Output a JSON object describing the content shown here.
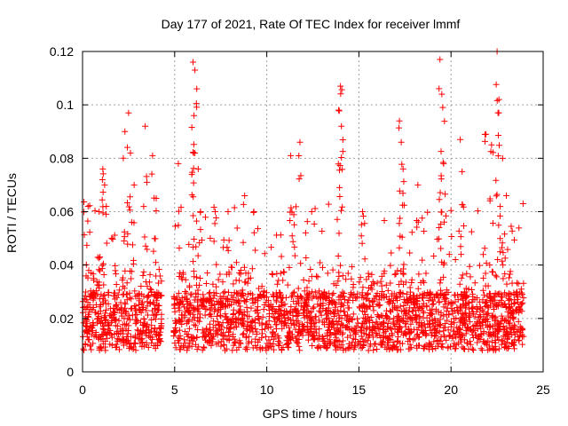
{
  "chart_data": {
    "type": "scatter",
    "title": "Day 177 of 2021, Rate Of TEC Index for receiver lmmf",
    "xlabel": "GPS time / hours",
    "ylabel": "ROTI / TECUs",
    "xlim": [
      0,
      25
    ],
    "ylim": [
      0,
      0.12
    ],
    "x_ticks": [
      0,
      5,
      10,
      15,
      20,
      25
    ],
    "x_tick_labels": [
      "0",
      "5",
      "10",
      "15",
      "20",
      "25"
    ],
    "y_ticks": [
      0,
      0.02,
      0.04,
      0.06,
      0.08,
      0.1,
      0.12
    ],
    "y_tick_labels": [
      "0",
      "0.02",
      "0.04",
      "0.06",
      "0.08",
      "0.1",
      "0.12"
    ],
    "grid": true,
    "marker": "+",
    "marker_color": "#ff0000",
    "series": [
      {
        "name": "ROTI",
        "data_gap_hours": [
          4.3,
          4.95
        ],
        "x_range_hours": [
          0,
          23.95
        ],
        "typical_band": [
          0.008,
          0.03
        ],
        "peaks": [
          {
            "x": 0.3,
            "y": 0.062
          },
          {
            "x": 0.9,
            "y": 0.06
          },
          {
            "x": 1.1,
            "y": 0.076
          },
          {
            "x": 1.2,
            "y": 0.07
          },
          {
            "x": 2.3,
            "y": 0.09
          },
          {
            "x": 2.5,
            "y": 0.097
          },
          {
            "x": 2.6,
            "y": 0.082
          },
          {
            "x": 2.8,
            "y": 0.07
          },
          {
            "x": 3.4,
            "y": 0.092
          },
          {
            "x": 3.8,
            "y": 0.081
          },
          {
            "x": 4.0,
            "y": 0.065
          },
          {
            "x": 5.2,
            "y": 0.078
          },
          {
            "x": 6.0,
            "y": 0.116
          },
          {
            "x": 6.1,
            "y": 0.113
          },
          {
            "x": 6.2,
            "y": 0.106
          },
          {
            "x": 6.05,
            "y": 0.096
          },
          {
            "x": 6.1,
            "y": 0.082
          },
          {
            "x": 6.4,
            "y": 0.06
          },
          {
            "x": 7.2,
            "y": 0.06
          },
          {
            "x": 7.9,
            "y": 0.06
          },
          {
            "x": 8.8,
            "y": 0.066
          },
          {
            "x": 9.3,
            "y": 0.06
          },
          {
            "x": 11.3,
            "y": 0.081
          },
          {
            "x": 11.8,
            "y": 0.086
          },
          {
            "x": 14.0,
            "y": 0.107
          },
          {
            "x": 13.9,
            "y": 0.098
          },
          {
            "x": 14.05,
            "y": 0.092
          },
          {
            "x": 13.95,
            "y": 0.069
          },
          {
            "x": 15.2,
            "y": 0.06
          },
          {
            "x": 17.2,
            "y": 0.094
          },
          {
            "x": 17.3,
            "y": 0.086
          },
          {
            "x": 17.4,
            "y": 0.076
          },
          {
            "x": 18.2,
            "y": 0.07
          },
          {
            "x": 19.4,
            "y": 0.117
          },
          {
            "x": 19.5,
            "y": 0.104
          },
          {
            "x": 19.55,
            "y": 0.099
          },
          {
            "x": 19.6,
            "y": 0.078
          },
          {
            "x": 20.5,
            "y": 0.087
          },
          {
            "x": 20.6,
            "y": 0.075
          },
          {
            "x": 21.9,
            "y": 0.089
          },
          {
            "x": 22.2,
            "y": 0.085
          },
          {
            "x": 22.5,
            "y": 0.12
          },
          {
            "x": 22.6,
            "y": 0.102
          },
          {
            "x": 22.55,
            "y": 0.097
          },
          {
            "x": 22.8,
            "y": 0.08
          },
          {
            "x": 23.0,
            "y": 0.066
          }
        ]
      }
    ]
  }
}
